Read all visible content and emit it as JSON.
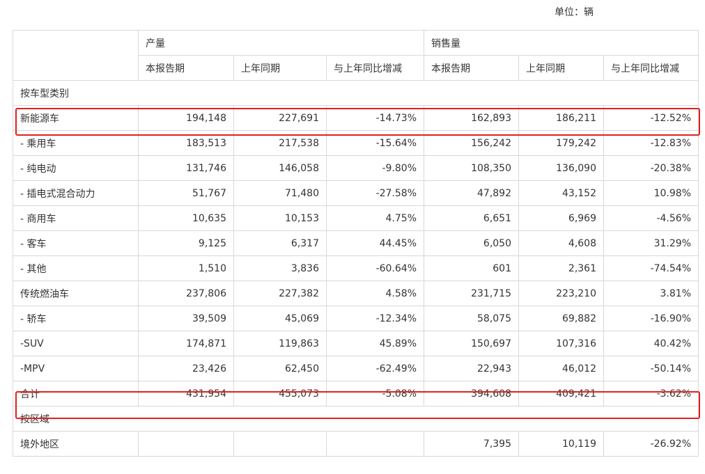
{
  "unit_label": "单位：辆",
  "header": {
    "production": "产量",
    "sales": "销售量",
    "current_period": "本报告期",
    "same_period_last_year": "上年同期",
    "yoy_change": "与上年同比增减"
  },
  "sections": {
    "by_vehicle_type": "按车型类别",
    "by_region": "按区域"
  },
  "rows": [
    {
      "label": "新能源车",
      "prod_cur": "194,148",
      "prod_prev": "227,691",
      "prod_yoy": "-14.73%",
      "sale_cur": "162,893",
      "sale_prev": "186,211",
      "sale_yoy": "-12.52%"
    },
    {
      "label": "- 乘用车",
      "prod_cur": "183,513",
      "prod_prev": "217,538",
      "prod_yoy": "-15.64%",
      "sale_cur": "156,242",
      "sale_prev": "179,242",
      "sale_yoy": "-12.83%"
    },
    {
      "label": "- 纯电动",
      "prod_cur": "131,746",
      "prod_prev": "146,058",
      "prod_yoy": "-9.80%",
      "sale_cur": "108,350",
      "sale_prev": "136,090",
      "sale_yoy": "-20.38%"
    },
    {
      "label": "- 插电式混合动力",
      "prod_cur": "51,767",
      "prod_prev": "71,480",
      "prod_yoy": "-27.58%",
      "sale_cur": "47,892",
      "sale_prev": "43,152",
      "sale_yoy": "10.98%"
    },
    {
      "label": "- 商用车",
      "prod_cur": "10,635",
      "prod_prev": "10,153",
      "prod_yoy": "4.75%",
      "sale_cur": "6,651",
      "sale_prev": "6,969",
      "sale_yoy": "-4.56%"
    },
    {
      "label": "- 客车",
      "prod_cur": "9,125",
      "prod_prev": "6,317",
      "prod_yoy": "44.45%",
      "sale_cur": "6,050",
      "sale_prev": "4,608",
      "sale_yoy": "31.29%"
    },
    {
      "label": "- 其他",
      "prod_cur": "1,510",
      "prod_prev": "3,836",
      "prod_yoy": "-60.64%",
      "sale_cur": "601",
      "sale_prev": "2,361",
      "sale_yoy": "-74.54%"
    },
    {
      "label": "传统燃油车",
      "prod_cur": "237,806",
      "prod_prev": "227,382",
      "prod_yoy": "4.58%",
      "sale_cur": "231,715",
      "sale_prev": "223,210",
      "sale_yoy": "3.81%"
    },
    {
      "label": "- 轿车",
      "prod_cur": "39,509",
      "prod_prev": "45,069",
      "prod_yoy": "-12.34%",
      "sale_cur": "58,075",
      "sale_prev": "69,882",
      "sale_yoy": "-16.90%"
    },
    {
      "label": "-SUV",
      "prod_cur": "174,871",
      "prod_prev": "119,863",
      "prod_yoy": "45.89%",
      "sale_cur": "150,697",
      "sale_prev": "107,316",
      "sale_yoy": "40.42%"
    },
    {
      "label": "-MPV",
      "prod_cur": "23,426",
      "prod_prev": "62,450",
      "prod_yoy": "-62.49%",
      "sale_cur": "22,943",
      "sale_prev": "46,012",
      "sale_yoy": "-50.14%"
    },
    {
      "label": "合计",
      "prod_cur": "431,954",
      "prod_prev": "455,073",
      "prod_yoy": "-5.08%",
      "sale_cur": "394,608",
      "sale_prev": "409,421",
      "sale_yoy": "-3.62%"
    }
  ],
  "region_rows": [
    {
      "label": "境外地区",
      "prod_cur": "",
      "prod_prev": "",
      "prod_yoy": "",
      "sale_cur": "7,395",
      "sale_prev": "10,119",
      "sale_yoy": "-26.92%"
    }
  ],
  "highlight_color": "#e02020"
}
